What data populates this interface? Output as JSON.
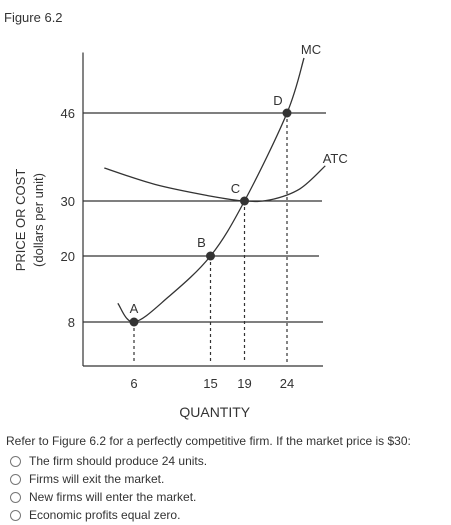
{
  "figure_title": "Figure 6.2",
  "chart_data": {
    "type": "line",
    "ylabel": "PRICE OR COST",
    "ylabel_sub": "(dollars per unit)",
    "xlabel": "QUANTITY",
    "x_ticks": [
      6,
      15,
      19,
      24
    ],
    "y_ticks": [
      8,
      20,
      30,
      46
    ],
    "xlim": [
      0,
      28
    ],
    "ylim": [
      0,
      57
    ],
    "curves": [
      {
        "name": "MC",
        "points": [
          [
            4.1,
            11.4
          ],
          [
            6,
            8
          ],
          [
            10,
            12.5
          ],
          [
            15,
            20
          ],
          [
            19,
            30
          ],
          [
            24,
            46
          ],
          [
            26,
            56
          ]
        ]
      },
      {
        "name": "ATC",
        "points": [
          [
            2.5,
            36
          ],
          [
            8.5,
            33
          ],
          [
            15,
            30.9
          ],
          [
            19,
            30
          ],
          [
            22,
            30.2
          ],
          [
            25.5,
            32.2
          ],
          [
            28.5,
            36.4
          ]
        ]
      }
    ],
    "points": [
      {
        "label": "A",
        "x": 6,
        "y": 8
      },
      {
        "label": "B",
        "x": 15,
        "y": 20
      },
      {
        "label": "C",
        "x": 19,
        "y": 30
      },
      {
        "label": "D",
        "x": 24,
        "y": 46
      }
    ],
    "price_lines": [
      8,
      20,
      30,
      46
    ]
  },
  "question": "Refer to Figure 6.2 for a perfectly competitive firm. If the market price is $30:",
  "options": [
    "The firm should produce 24 units.",
    "Firms will exit the market.",
    "New firms will enter the market.",
    "Economic profits equal zero."
  ]
}
